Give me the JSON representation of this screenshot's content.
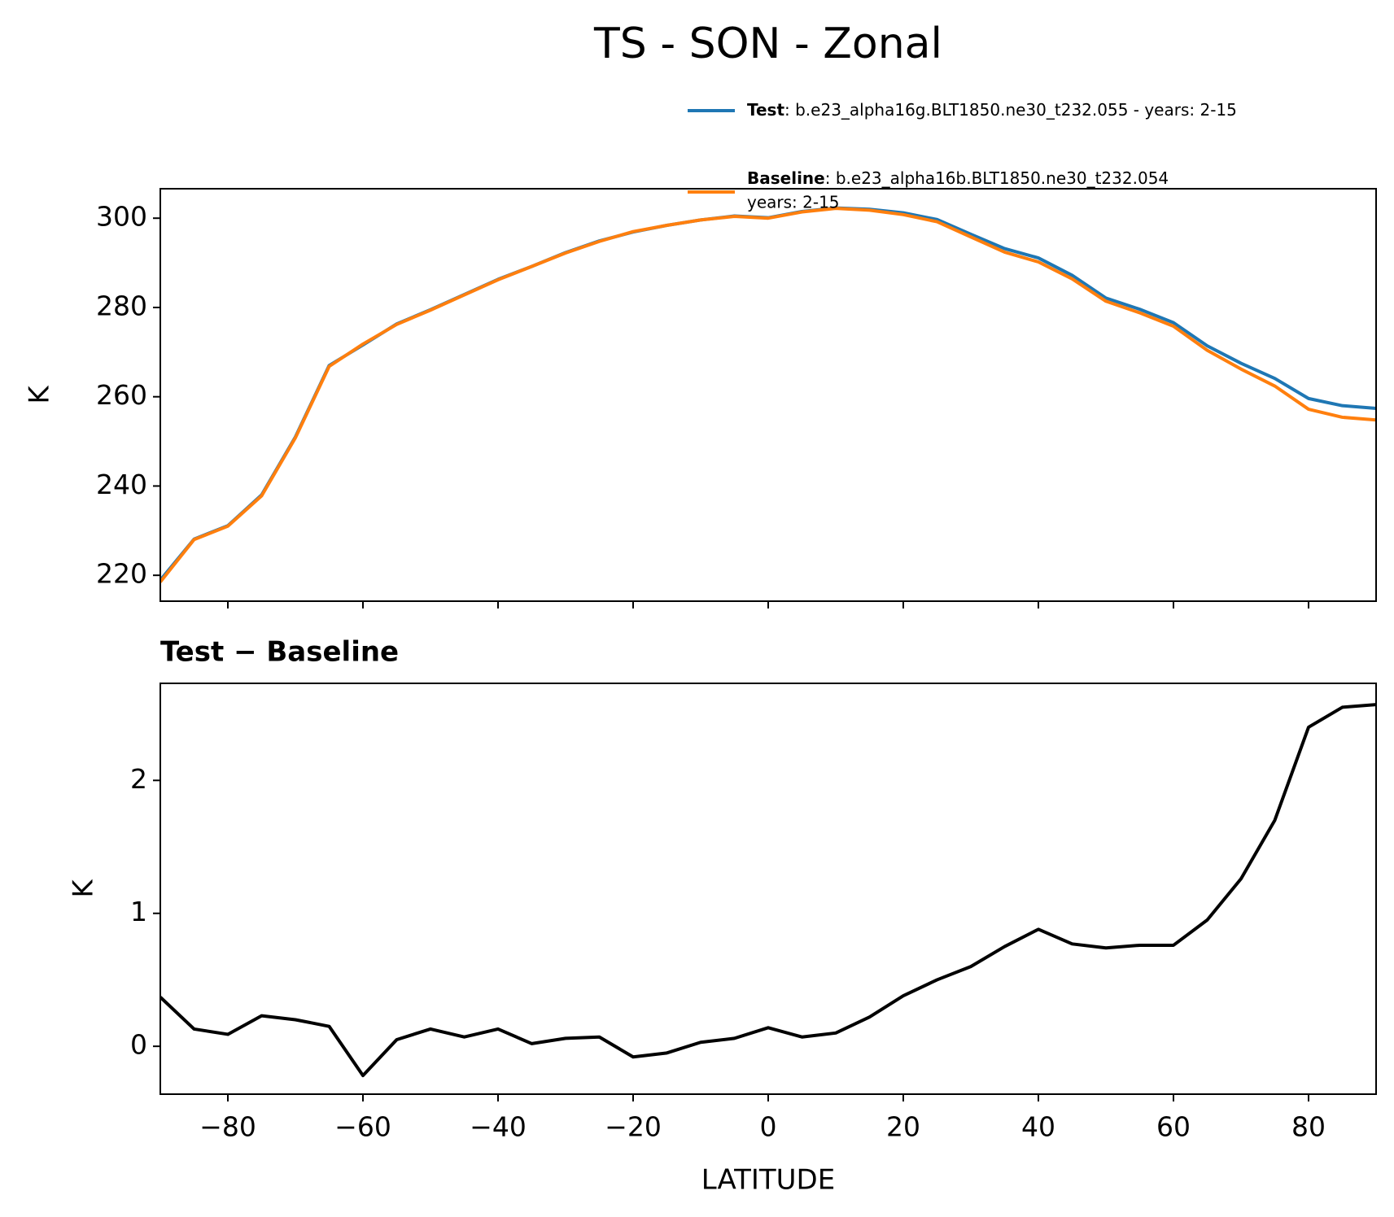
{
  "title": "TS - SON - Zonal",
  "chart_data": [
    {
      "type": "line",
      "x": [
        -90,
        -85,
        -80,
        -75,
        -70,
        -65,
        -60,
        -55,
        -50,
        -45,
        -40,
        -35,
        -30,
        -25,
        -20,
        -15,
        -10,
        -5,
        0,
        5,
        10,
        15,
        20,
        25,
        30,
        35,
        40,
        45,
        50,
        55,
        60,
        65,
        70,
        75,
        80,
        85,
        90
      ],
      "series": [
        {
          "name": "Test",
          "case_lines": [
            ": b.e23_alpha16g.BLT1850.ne30_t232.055 - years: 2-15"
          ],
          "color": "#1f77b4",
          "values": [
            218.9,
            228.1,
            231.1,
            238.0,
            251.0,
            267.0,
            271.6,
            276.3,
            279.5,
            282.9,
            286.3,
            289.2,
            292.3,
            294.9,
            296.9,
            298.4,
            299.6,
            300.5,
            300.1,
            301.5,
            302.3,
            302.0,
            301.2,
            299.7,
            296.4,
            293.2,
            291.1,
            287.2,
            282.1,
            279.6,
            276.6,
            271.4,
            267.5,
            264.1,
            259.6,
            258.0,
            257.4
          ]
        },
        {
          "name": "Baseline",
          "case_lines": [
            ": b.e23_alpha16b.BLT1850.ne30_t232.054",
            "years: 2-15"
          ],
          "color": "#ff7f0e",
          "values": [
            218.5,
            228.0,
            231.0,
            237.8,
            250.8,
            266.8,
            271.8,
            276.2,
            279.4,
            282.8,
            286.2,
            289.2,
            292.2,
            294.8,
            297.0,
            298.4,
            299.6,
            300.4,
            300.0,
            301.4,
            302.2,
            301.8,
            300.8,
            299.2,
            295.8,
            292.4,
            290.2,
            286.4,
            281.4,
            278.8,
            275.8,
            270.4,
            266.2,
            262.4,
            257.2,
            255.4,
            254.8
          ]
        }
      ],
      "ylabel": "K",
      "xlim": [
        -90,
        90
      ],
      "ylim": [
        214.2,
        306.6
      ],
      "xticks": [
        -80,
        -60,
        -40,
        -20,
        0,
        20,
        40,
        60,
        80
      ],
      "yticks": [
        220,
        240,
        260,
        280,
        300
      ]
    },
    {
      "type": "line",
      "title": "Test − Baseline",
      "x": [
        -90,
        -85,
        -80,
        -75,
        -70,
        -65,
        -60,
        -55,
        -50,
        -45,
        -40,
        -35,
        -30,
        -25,
        -20,
        -15,
        -10,
        -5,
        0,
        5,
        10,
        15,
        20,
        25,
        30,
        35,
        40,
        45,
        50,
        55,
        60,
        65,
        70,
        75,
        80,
        85,
        90
      ],
      "series": [
        {
          "color": "#000000",
          "values": [
            0.37,
            0.13,
            0.09,
            0.23,
            0.2,
            0.15,
            -0.22,
            0.05,
            0.13,
            0.07,
            0.13,
            0.02,
            0.06,
            0.07,
            -0.08,
            -0.05,
            0.03,
            0.06,
            0.14,
            0.07,
            0.1,
            0.22,
            0.38,
            0.5,
            0.6,
            0.75,
            0.88,
            0.77,
            0.74,
            0.76,
            0.76,
            0.95,
            1.26,
            1.7,
            2.4,
            2.55,
            2.57
          ]
        }
      ],
      "xlabel": "LATITUDE",
      "ylabel": "K",
      "xlim": [
        -90,
        90
      ],
      "ylim": [
        -0.36,
        2.73
      ],
      "xticks": [
        {
          "value": -80,
          "label": "−80"
        },
        {
          "value": -60,
          "label": "−60"
        },
        {
          "value": -40,
          "label": "−40"
        },
        {
          "value": -20,
          "label": "−20"
        },
        0,
        20,
        40,
        60,
        80
      ],
      "yticks": [
        0,
        1,
        2
      ]
    }
  ]
}
